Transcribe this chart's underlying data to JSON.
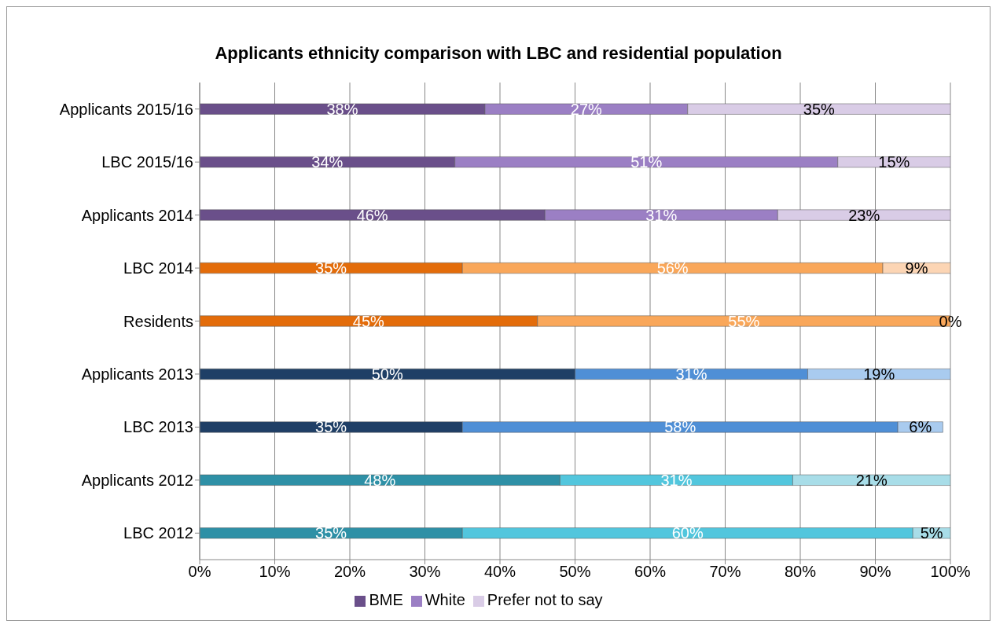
{
  "chart_data": {
    "type": "bar",
    "orientation": "horizontal",
    "stacked": true,
    "title": "Applicants ethnicity comparison with LBC and residential population",
    "categories": [
      "Applicants 2015/16",
      "LBC 2015/16",
      "Applicants 2014",
      "LBC 2014",
      "Residents",
      "Applicants 2013",
      "LBC 2013",
      "Applicants 2012",
      "LBC 2012"
    ],
    "series": [
      {
        "name": "BME",
        "color": "#6a4f8a",
        "colors": [
          "#6a4f8a",
          "#6a4f8a",
          "#6a4f8a",
          "#e36c0a",
          "#e36c0a",
          "#1f3f66",
          "#1f3f66",
          "#2e90a6",
          "#2e90a6"
        ],
        "values": [
          38,
          34,
          46,
          35,
          45,
          50,
          35,
          48,
          35
        ],
        "value_labels": [
          "38%",
          "34%",
          "46%",
          "35%",
          "45%",
          "50%",
          "35%",
          "48%",
          "35%"
        ]
      },
      {
        "name": "White",
        "color": "#9b7fc4",
        "colors": [
          "#9b7fc4",
          "#9b7fc4",
          "#9b7fc4",
          "#f9a75a",
          "#f9a75a",
          "#4f8fd6",
          "#4f8fd6",
          "#52c6dd",
          "#52c6dd"
        ],
        "values": [
          27,
          51,
          31,
          56,
          55,
          31,
          58,
          31,
          60
        ],
        "value_labels": [
          "27%",
          "51%",
          "31%",
          "56%",
          "55%",
          "31%",
          "58%",
          "31%",
          "60%"
        ]
      },
      {
        "name": "Prefer not to say",
        "color": "#d9cce6",
        "colors": [
          "#d9cce6",
          "#d9cce6",
          "#d9cce6",
          "#fcd5b4",
          "#fcd5b4",
          "#a9cbef",
          "#a9cbef",
          "#a8dde8",
          "#a8dde8"
        ],
        "values": [
          35,
          15,
          23,
          9,
          0,
          19,
          6,
          21,
          5
        ],
        "value_labels": [
          "35%",
          "15%",
          "23%",
          "9%",
          "0%",
          "19%",
          "6%",
          "21%",
          "5%"
        ]
      }
    ],
    "xlim": [
      0,
      100
    ],
    "xticks": [
      {
        "value": 0,
        "label": "0%"
      },
      {
        "value": 10,
        "label": "10%"
      },
      {
        "value": 20,
        "label": "20%"
      },
      {
        "value": 30,
        "label": "30%"
      },
      {
        "value": 40,
        "label": "40%"
      },
      {
        "value": 50,
        "label": "50%"
      },
      {
        "value": 60,
        "label": "60%"
      },
      {
        "value": 70,
        "label": "70%"
      },
      {
        "value": 80,
        "label": "80%"
      },
      {
        "value": 90,
        "label": "90%"
      },
      {
        "value": 100,
        "label": "100%"
      }
    ],
    "grid": "x",
    "legend": "bottom"
  }
}
